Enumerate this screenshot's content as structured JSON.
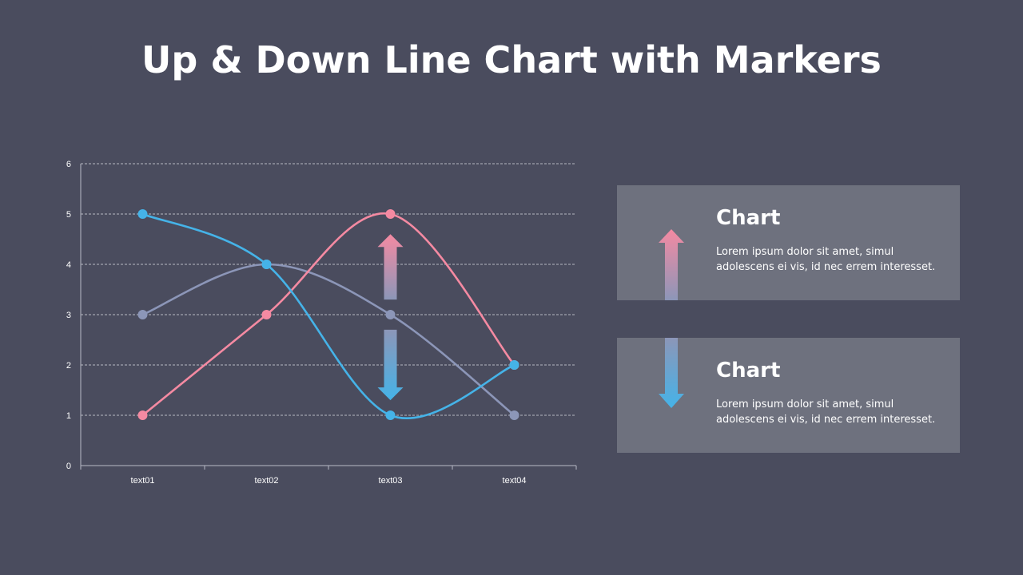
{
  "page": {
    "title": "Up & Down Line Chart with Markers"
  },
  "chart_data": {
    "type": "line",
    "title": "",
    "xlabel": "",
    "ylabel": "",
    "categories": [
      "text01",
      "text02",
      "text03",
      "text04"
    ],
    "ylim": [
      0,
      6
    ],
    "yticks": [
      0,
      1,
      2,
      3,
      4,
      5,
      6
    ],
    "grid": true,
    "smooth": true,
    "markers": true,
    "series": [
      {
        "color": "#8c96b8",
        "values": [
          3,
          4,
          3,
          1
        ]
      },
      {
        "color": "#f48aa2",
        "values": [
          1,
          3,
          5,
          2
        ]
      },
      {
        "color": "#45b3e8",
        "values": [
          5,
          4,
          1,
          2
        ]
      }
    ],
    "annotations": [
      {
        "type": "up-arrow",
        "category": "text03",
        "from": 3.3,
        "to": 4.6,
        "color_top": "#f48aa2",
        "color_bottom": "#8c96b8"
      },
      {
        "type": "down-arrow",
        "category": "text03",
        "from": 2.7,
        "to": 1.3,
        "color_top": "#8c96b8",
        "color_bottom": "#45b3e8"
      }
    ]
  },
  "cards": [
    {
      "heading": "Chart",
      "text": "Lorem ipsum dolor sit amet, simul adolescens ei vis, id nec errem interesset.",
      "icon": "up-arrow-icon"
    },
    {
      "heading": "Chart",
      "text": "Lorem ipsum dolor sit amet, simul adolescens ei vis, id nec errem interesset.",
      "icon": "down-arrow-icon"
    }
  ]
}
